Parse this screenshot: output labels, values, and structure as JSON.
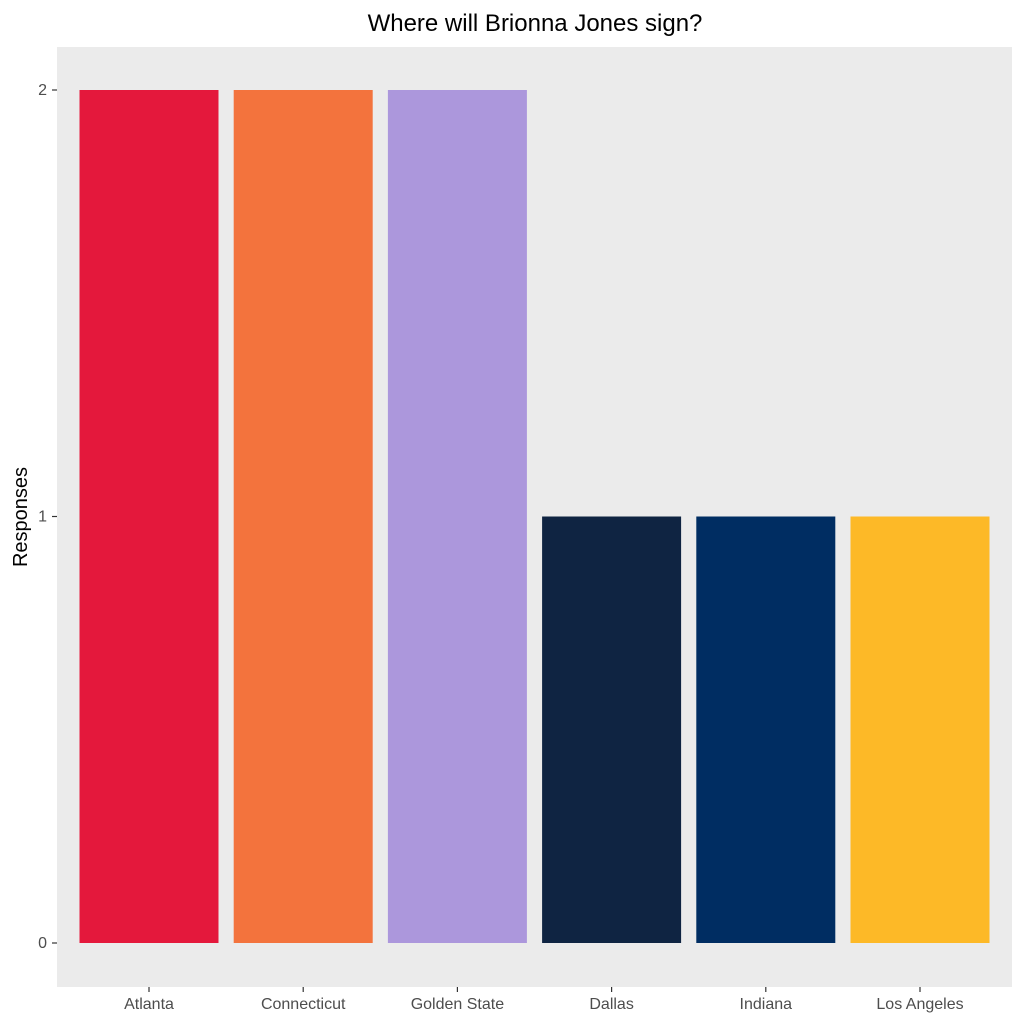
{
  "chart_data": {
    "type": "bar",
    "title": "Where will Brionna Jones sign?",
    "xlabel": "",
    "ylabel": "Responses",
    "categories": [
      "Atlanta",
      "Connecticut",
      "Golden State",
      "Dallas",
      "Indiana",
      "Los Angeles"
    ],
    "values": [
      2,
      2,
      2,
      1,
      1,
      1
    ],
    "colors": [
      "#E4183C",
      "#F3733D",
      "#AC97DC",
      "#0F2442",
      "#002D62",
      "#FDB927"
    ],
    "ylim": [
      0,
      2
    ],
    "yticks": [
      0,
      1,
      2
    ],
    "grid": false,
    "legend": "none",
    "panel_background": "#EBEBEB"
  }
}
